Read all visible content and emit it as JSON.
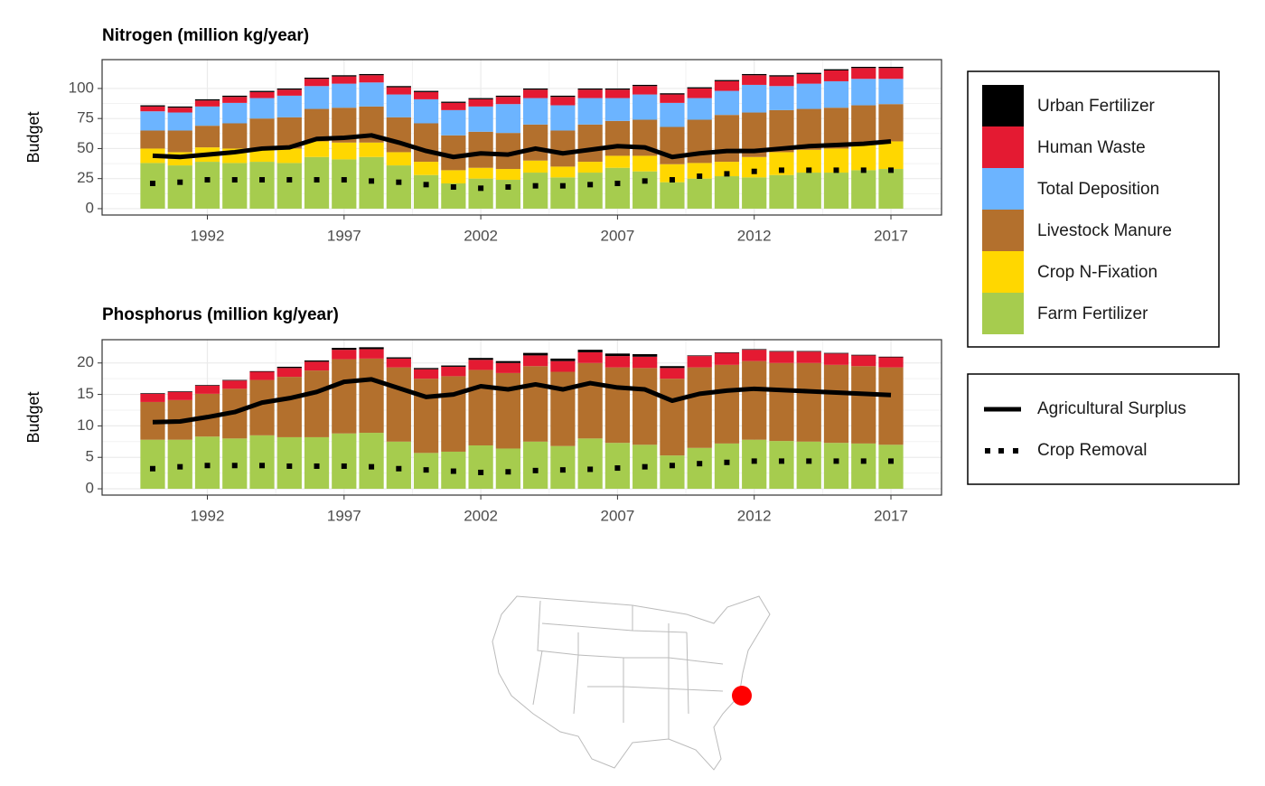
{
  "chart_data": [
    {
      "type": "bar",
      "stacked": true,
      "title": "Nitrogen (million kg/year)",
      "ylabel": "Budget",
      "x": [
        1990,
        1991,
        1992,
        1993,
        1994,
        1995,
        1996,
        1997,
        1998,
        1999,
        2000,
        2001,
        2002,
        2003,
        2004,
        2005,
        2006,
        2007,
        2008,
        2009,
        2010,
        2011,
        2012,
        2013,
        2014,
        2015,
        2016,
        2017
      ],
      "xlim": [
        1988.15,
        2018.85
      ],
      "xticks": [
        1992,
        1997,
        2002,
        2007,
        2012,
        2017
      ],
      "ylim": [
        -5.3,
        124
      ],
      "yticks": [
        0,
        25,
        50,
        75,
        100
      ],
      "grid": true,
      "series": [
        {
          "name": "Farm Fertilizer",
          "color": "#a6cc4e",
          "values": [
            38,
            36,
            39,
            38,
            39,
            38,
            43,
            41,
            43,
            36,
            28,
            21,
            25,
            24,
            30,
            26,
            30,
            34,
            31,
            22,
            25,
            27,
            26,
            28,
            30,
            30,
            32,
            33
          ]
        },
        {
          "name": "Crop N-Fixation",
          "color": "#ffd700",
          "values": [
            12,
            11,
            12,
            12,
            11,
            12,
            13,
            14,
            12,
            11,
            11,
            11,
            9,
            9,
            10,
            9,
            9,
            10,
            13,
            15,
            13,
            12,
            17,
            19,
            19,
            20,
            21,
            23
          ]
        },
        {
          "name": "Livestock Manure",
          "color": "#b3702d",
          "values": [
            15,
            18,
            18,
            21,
            25,
            26,
            27,
            29,
            30,
            29,
            32,
            29,
            30,
            30,
            30,
            30,
            31,
            29,
            30,
            31,
            36,
            39,
            37,
            35,
            34,
            34,
            33,
            31
          ]
        },
        {
          "name": "Total Deposition",
          "color": "#6cb4ff",
          "values": [
            16,
            15,
            16,
            17,
            17,
            18,
            19,
            20,
            20,
            19,
            20,
            21,
            21,
            24,
            22,
            21,
            22,
            19,
            21,
            20,
            18,
            20,
            23,
            20,
            21,
            22,
            22,
            21
          ]
        },
        {
          "name": "Human Waste",
          "color": "#e41a32",
          "values": [
            4,
            4,
            5,
            5,
            5,
            5,
            6,
            6,
            6,
            6,
            6,
            6,
            6,
            6,
            7,
            7,
            7,
            7,
            7,
            7,
            8,
            8,
            8,
            8,
            8,
            9,
            9,
            9
          ]
        },
        {
          "name": "Urban Fertilizer",
          "color": "#000000",
          "values": [
            1,
            1,
            1,
            1,
            1,
            1,
            1,
            1,
            1,
            1,
            1,
            1,
            1,
            1,
            1,
            1,
            1,
            1,
            1,
            1,
            1,
            1,
            1,
            1,
            1,
            1,
            1,
            1
          ]
        }
      ],
      "lines": [
        {
          "name": "Agricultural Surplus",
          "color": "#000000",
          "style": "solid",
          "values": [
            44,
            43,
            45,
            47,
            50,
            51,
            58,
            59,
            61,
            55,
            48,
            43,
            46,
            45,
            50,
            46,
            49,
            52,
            51,
            43,
            46,
            48,
            48,
            50,
            52,
            53,
            54,
            56
          ]
        },
        {
          "name": "Crop Removal",
          "color": "#000000",
          "style": "dotted",
          "values": [
            21,
            22,
            24,
            24,
            24,
            24,
            24,
            24,
            23,
            22,
            20,
            18,
            17,
            18,
            19,
            19,
            20,
            21,
            23,
            24,
            27,
            29,
            31,
            32,
            32,
            32,
            32,
            32
          ]
        }
      ]
    },
    {
      "type": "bar",
      "stacked": true,
      "title": "Phosphorus (million kg/year)",
      "ylabel": "Budget",
      "x": [
        1990,
        1991,
        1992,
        1993,
        1994,
        1995,
        1996,
        1997,
        1998,
        1999,
        2000,
        2001,
        2002,
        2003,
        2004,
        2005,
        2006,
        2007,
        2008,
        2009,
        2010,
        2011,
        2012,
        2013,
        2014,
        2015,
        2016,
        2017
      ],
      "xlim": [
        1988.15,
        2018.85
      ],
      "xticks": [
        1992,
        1997,
        2002,
        2007,
        2012,
        2017
      ],
      "ylim": [
        -1,
        23.7
      ],
      "yticks": [
        0,
        5,
        10,
        15,
        20
      ],
      "grid": true,
      "series": [
        {
          "name": "Farm Fertilizer",
          "color": "#a6cc4e",
          "values": [
            7.8,
            7.8,
            8.3,
            8.0,
            8.5,
            8.2,
            8.2,
            8.8,
            8.9,
            7.5,
            5.7,
            5.9,
            6.9,
            6.4,
            7.5,
            6.8,
            8.0,
            7.3,
            7.0,
            5.3,
            6.5,
            7.2,
            7.8,
            7.6,
            7.5,
            7.3,
            7.2,
            7.0
          ]
        },
        {
          "name": "Livestock Manure",
          "color": "#b3702d",
          "values": [
            6.0,
            6.3,
            6.8,
            7.9,
            8.8,
            9.6,
            10.6,
            11.8,
            11.8,
            11.8,
            11.8,
            12.0,
            12.0,
            12.0,
            12.0,
            11.8,
            12.0,
            12.0,
            12.2,
            12.2,
            12.8,
            12.5,
            12.5,
            12.4,
            12.5,
            12.4,
            12.3,
            12.3
          ]
        },
        {
          "name": "Human Waste",
          "color": "#e41a32",
          "values": [
            1.3,
            1.3,
            1.3,
            1.3,
            1.3,
            1.4,
            1.4,
            1.5,
            1.5,
            1.4,
            1.5,
            1.5,
            1.6,
            1.6,
            1.7,
            1.7,
            1.7,
            1.8,
            1.8,
            1.7,
            1.8,
            1.9,
            1.8,
            1.8,
            1.8,
            1.8,
            1.7,
            1.6
          ]
        },
        {
          "name": "Urban Fertilizer",
          "color": "#000000",
          "values": [
            0.1,
            0.1,
            0.1,
            0.1,
            0.1,
            0.2,
            0.2,
            0.3,
            0.3,
            0.2,
            0.2,
            0.2,
            0.3,
            0.3,
            0.4,
            0.4,
            0.4,
            0.4,
            0.4,
            0.3,
            0.1,
            0.1,
            0.1,
            0.1,
            0.1,
            0.1,
            0.1,
            0.1
          ]
        }
      ],
      "lines": [
        {
          "name": "Agricultural Surplus",
          "color": "#000000",
          "style": "solid",
          "values": [
            10.6,
            10.7,
            11.4,
            12.2,
            13.7,
            14.4,
            15.4,
            17.0,
            17.4,
            16.0,
            14.6,
            15.0,
            16.3,
            15.8,
            16.6,
            15.8,
            16.8,
            16.1,
            15.8,
            14.0,
            15.1,
            15.6,
            15.9,
            15.7,
            15.5,
            15.3,
            15.1,
            14.9
          ]
        },
        {
          "name": "Crop Removal",
          "color": "#000000",
          "style": "dotted",
          "values": [
            3.2,
            3.5,
            3.7,
            3.7,
            3.7,
            3.6,
            3.6,
            3.6,
            3.5,
            3.2,
            3.0,
            2.8,
            2.6,
            2.7,
            2.9,
            3.0,
            3.1,
            3.3,
            3.5,
            3.7,
            4.0,
            4.2,
            4.4,
            4.4,
            4.4,
            4.4,
            4.4,
            4.4
          ]
        }
      ]
    }
  ]
}
